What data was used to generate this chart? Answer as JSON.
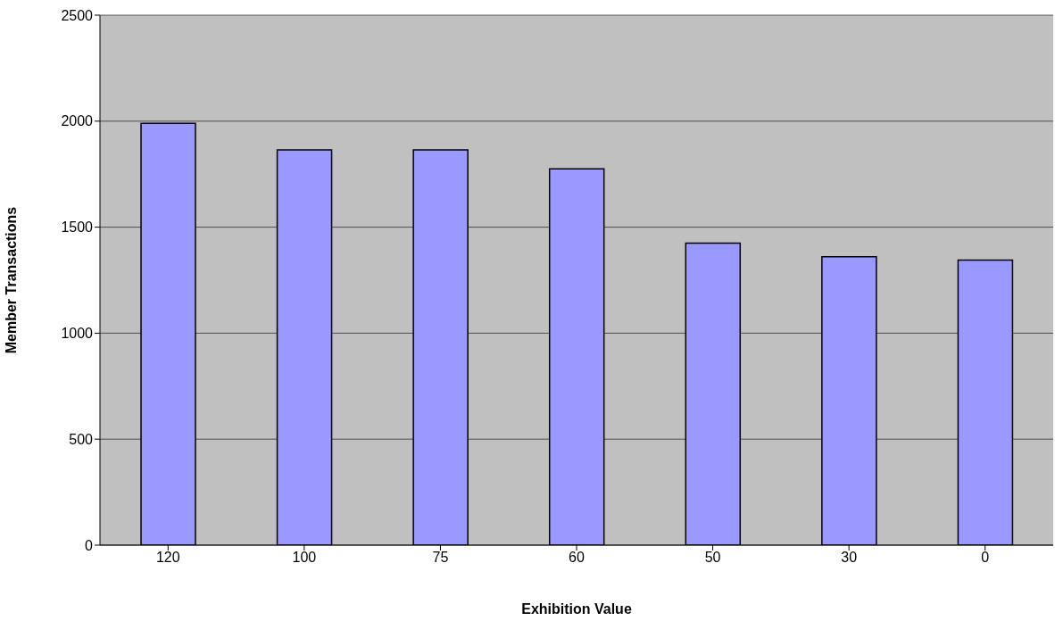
{
  "chart_data": {
    "type": "bar",
    "xlabel": "Exhibition Value",
    "ylabel": "Member Transactions",
    "categories": [
      "120",
      "100",
      "75",
      "60",
      "50",
      "30",
      "0"
    ],
    "values": [
      1990,
      1865,
      1865,
      1775,
      1425,
      1360,
      1345
    ],
    "color": "#9999ff",
    "ylim": [
      0,
      2500
    ],
    "yticks": [
      0,
      500,
      1000,
      1500,
      2000,
      2500
    ],
    "grid": "y"
  }
}
